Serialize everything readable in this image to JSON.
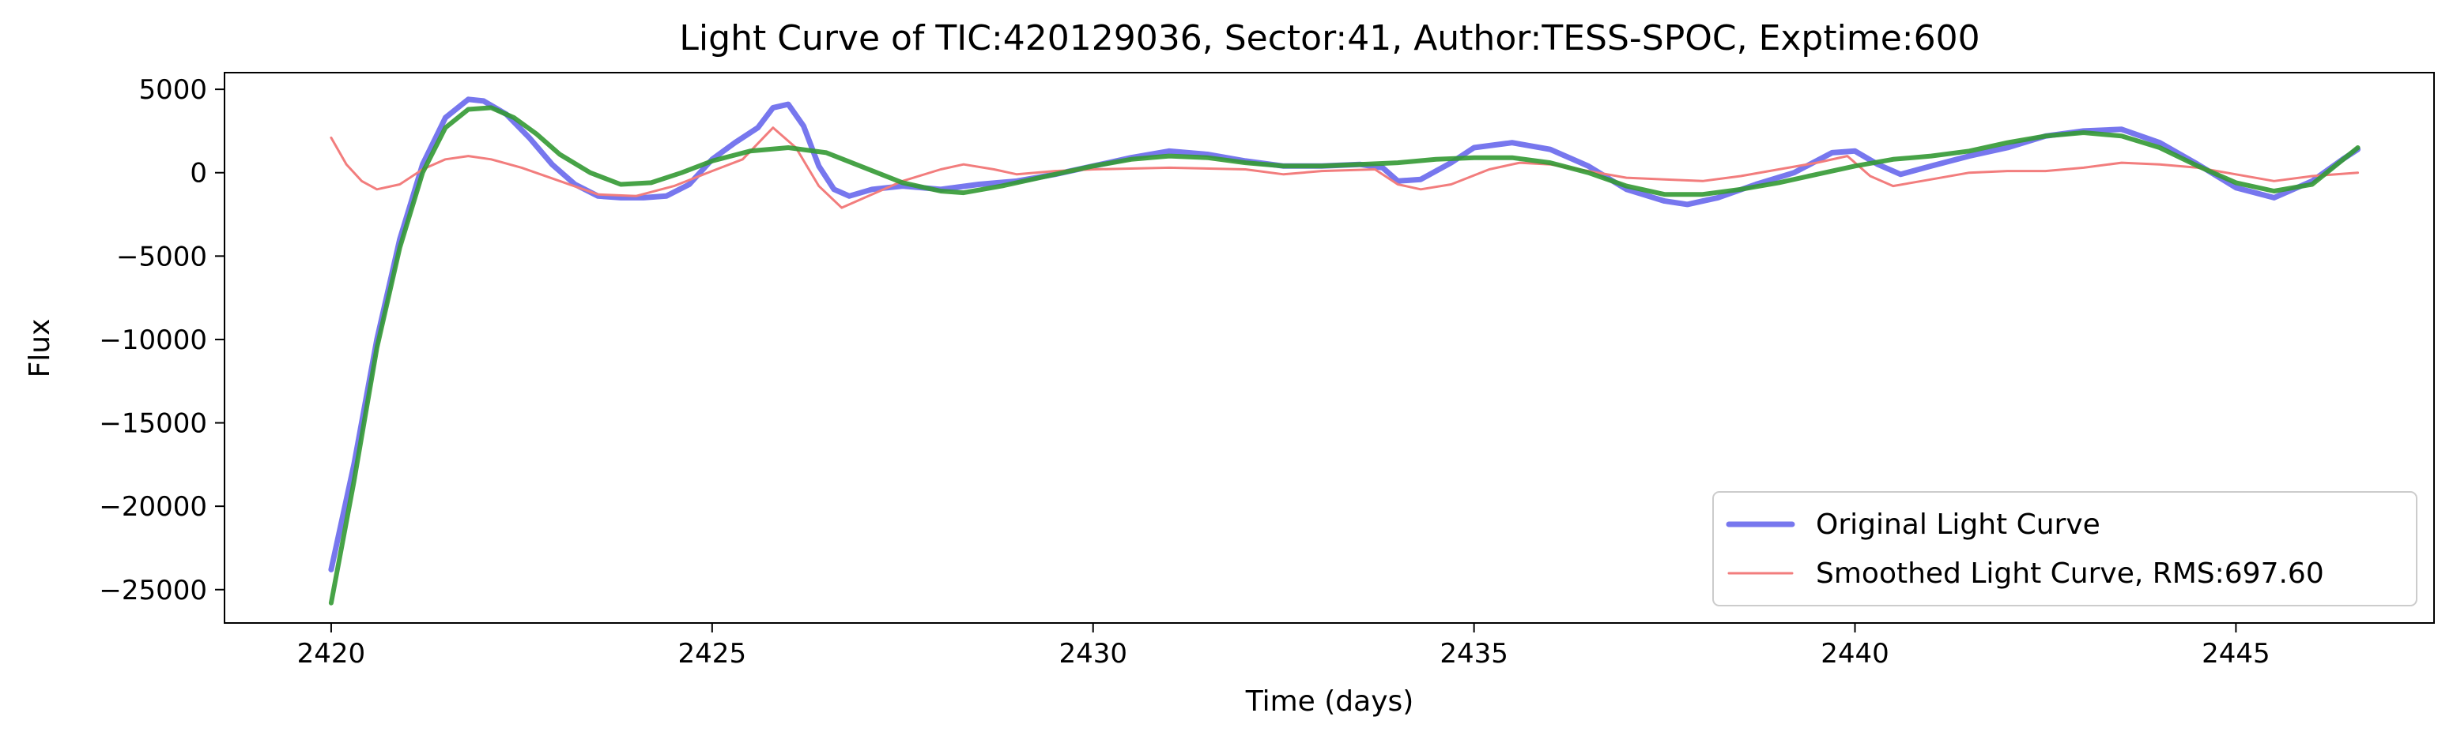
{
  "chart_data": {
    "type": "line",
    "title": "Light Curve of TIC:420129036, Sector:41, Author:TESS-SPOC, Exptime:600",
    "xlabel": "Time (days)",
    "ylabel": "Flux",
    "xlim": [
      2418.6,
      2447.6
    ],
    "ylim": [
      -27000,
      6000
    ],
    "xticks": [
      2420,
      2425,
      2430,
      2435,
      2440,
      2445
    ],
    "yticks": [
      5000,
      0,
      -5000,
      -10000,
      -15000,
      -20000,
      -25000
    ],
    "xtick_labels": [
      "2420",
      "2425",
      "2430",
      "2435",
      "2440",
      "2445"
    ],
    "ytick_labels": [
      "5000",
      "0",
      "−5000",
      "−10000",
      "−15000",
      "−20000",
      "−25000"
    ],
    "grid": false,
    "legend_position": "lower-right",
    "series": [
      {
        "name": "Original Light Curve",
        "color": "#7777ee",
        "points": [
          [
            2420.0,
            -23800
          ],
          [
            2420.3,
            -17500
          ],
          [
            2420.6,
            -10000
          ],
          [
            2420.9,
            -4000
          ],
          [
            2421.2,
            500
          ],
          [
            2421.5,
            3300
          ],
          [
            2421.8,
            4400
          ],
          [
            2422.0,
            4300
          ],
          [
            2422.3,
            3500
          ],
          [
            2422.6,
            2100
          ],
          [
            2422.9,
            500
          ],
          [
            2423.2,
            -700
          ],
          [
            2423.5,
            -1400
          ],
          [
            2423.8,
            -1500
          ],
          [
            2424.1,
            -1500
          ],
          [
            2424.4,
            -1400
          ],
          [
            2424.7,
            -700
          ],
          [
            2425.0,
            800
          ],
          [
            2425.3,
            1800
          ],
          [
            2425.6,
            2700
          ],
          [
            2425.8,
            3900
          ],
          [
            2426.0,
            4100
          ],
          [
            2426.2,
            2800
          ],
          [
            2426.4,
            400
          ],
          [
            2426.6,
            -1000
          ],
          [
            2426.8,
            -1400
          ],
          [
            2427.1,
            -1000
          ],
          [
            2427.5,
            -800
          ],
          [
            2428.0,
            -1000
          ],
          [
            2428.5,
            -700
          ],
          [
            2429.0,
            -500
          ],
          [
            2429.5,
            -100
          ],
          [
            2430.0,
            400
          ],
          [
            2430.5,
            900
          ],
          [
            2431.0,
            1300
          ],
          [
            2431.5,
            1100
          ],
          [
            2432.0,
            700
          ],
          [
            2432.5,
            400
          ],
          [
            2433.0,
            400
          ],
          [
            2433.5,
            500
          ],
          [
            2433.8,
            300
          ],
          [
            2434.0,
            -500
          ],
          [
            2434.3,
            -400
          ],
          [
            2434.7,
            600
          ],
          [
            2435.0,
            1500
          ],
          [
            2435.5,
            1800
          ],
          [
            2436.0,
            1400
          ],
          [
            2436.5,
            400
          ],
          [
            2437.0,
            -1000
          ],
          [
            2437.5,
            -1700
          ],
          [
            2437.8,
            -1900
          ],
          [
            2438.2,
            -1500
          ],
          [
            2438.7,
            -700
          ],
          [
            2439.2,
            0
          ],
          [
            2439.7,
            1200
          ],
          [
            2440.0,
            1300
          ],
          [
            2440.3,
            500
          ],
          [
            2440.6,
            -100
          ],
          [
            2441.0,
            400
          ],
          [
            2441.5,
            1000
          ],
          [
            2442.0,
            1500
          ],
          [
            2442.5,
            2200
          ],
          [
            2443.0,
            2500
          ],
          [
            2443.5,
            2600
          ],
          [
            2444.0,
            1800
          ],
          [
            2444.5,
            500
          ],
          [
            2445.0,
            -900
          ],
          [
            2445.5,
            -1500
          ],
          [
            2446.0,
            -500
          ],
          [
            2446.4,
            800
          ],
          [
            2446.6,
            1400
          ]
        ]
      },
      {
        "name": "Smoothed Light Curve, RMS:697.60",
        "color": "#f27d7d",
        "points": [
          [
            2420.0,
            2100
          ],
          [
            2420.2,
            500
          ],
          [
            2420.4,
            -500
          ],
          [
            2420.6,
            -1000
          ],
          [
            2420.9,
            -700
          ],
          [
            2421.2,
            200
          ],
          [
            2421.5,
            800
          ],
          [
            2421.8,
            1000
          ],
          [
            2422.1,
            800
          ],
          [
            2422.5,
            300
          ],
          [
            2423.0,
            -500
          ],
          [
            2423.5,
            -1300
          ],
          [
            2424.0,
            -1400
          ],
          [
            2424.5,
            -800
          ],
          [
            2425.0,
            100
          ],
          [
            2425.4,
            800
          ],
          [
            2425.8,
            2700
          ],
          [
            2426.1,
            1500
          ],
          [
            2426.4,
            -800
          ],
          [
            2426.7,
            -2100
          ],
          [
            2427.0,
            -1500
          ],
          [
            2427.5,
            -500
          ],
          [
            2428.0,
            200
          ],
          [
            2428.3,
            500
          ],
          [
            2428.7,
            200
          ],
          [
            2429.0,
            -100
          ],
          [
            2429.5,
            100
          ],
          [
            2430.0,
            200
          ],
          [
            2431.0,
            300
          ],
          [
            2432.0,
            200
          ],
          [
            2432.5,
            -100
          ],
          [
            2433.0,
            100
          ],
          [
            2433.7,
            200
          ],
          [
            2434.0,
            -700
          ],
          [
            2434.3,
            -1000
          ],
          [
            2434.7,
            -700
          ],
          [
            2435.2,
            200
          ],
          [
            2435.6,
            600
          ],
          [
            2436.0,
            500
          ],
          [
            2436.5,
            100
          ],
          [
            2437.0,
            -300
          ],
          [
            2437.5,
            -400
          ],
          [
            2438.0,
            -500
          ],
          [
            2438.5,
            -200
          ],
          [
            2439.0,
            200
          ],
          [
            2439.5,
            600
          ],
          [
            2439.9,
            1000
          ],
          [
            2440.2,
            -200
          ],
          [
            2440.5,
            -800
          ],
          [
            2441.0,
            -400
          ],
          [
            2441.5,
            0
          ],
          [
            2442.0,
            100
          ],
          [
            2442.5,
            100
          ],
          [
            2443.0,
            300
          ],
          [
            2443.5,
            600
          ],
          [
            2444.0,
            500
          ],
          [
            2444.5,
            300
          ],
          [
            2445.0,
            -100
          ],
          [
            2445.5,
            -500
          ],
          [
            2446.0,
            -200
          ],
          [
            2446.6,
            0
          ]
        ]
      },
      {
        "color": "#339933",
        "points": [
          [
            2420.0,
            -25800
          ],
          [
            2420.3,
            -18500
          ],
          [
            2420.6,
            -10500
          ],
          [
            2420.9,
            -4500
          ],
          [
            2421.2,
            0
          ],
          [
            2421.5,
            2700
          ],
          [
            2421.8,
            3800
          ],
          [
            2422.1,
            3900
          ],
          [
            2422.4,
            3300
          ],
          [
            2422.7,
            2300
          ],
          [
            2423.0,
            1100
          ],
          [
            2423.4,
            0
          ],
          [
            2423.8,
            -700
          ],
          [
            2424.2,
            -600
          ],
          [
            2424.6,
            0
          ],
          [
            2425.0,
            700
          ],
          [
            2425.5,
            1300
          ],
          [
            2426.0,
            1500
          ],
          [
            2426.5,
            1200
          ],
          [
            2427.0,
            300
          ],
          [
            2427.5,
            -600
          ],
          [
            2428.0,
            -1100
          ],
          [
            2428.3,
            -1200
          ],
          [
            2428.8,
            -800
          ],
          [
            2429.5,
            -100
          ],
          [
            2430.0,
            400
          ],
          [
            2430.5,
            800
          ],
          [
            2431.0,
            1000
          ],
          [
            2431.5,
            900
          ],
          [
            2432.0,
            600
          ],
          [
            2432.5,
            400
          ],
          [
            2433.0,
            400
          ],
          [
            2433.5,
            500
          ],
          [
            2434.0,
            600
          ],
          [
            2434.5,
            800
          ],
          [
            2435.0,
            900
          ],
          [
            2435.5,
            900
          ],
          [
            2436.0,
            600
          ],
          [
            2436.5,
            0
          ],
          [
            2437.0,
            -800
          ],
          [
            2437.5,
            -1300
          ],
          [
            2438.0,
            -1300
          ],
          [
            2438.5,
            -1000
          ],
          [
            2439.0,
            -600
          ],
          [
            2439.5,
            -100
          ],
          [
            2440.0,
            400
          ],
          [
            2440.5,
            800
          ],
          [
            2441.0,
            1000
          ],
          [
            2441.5,
            1300
          ],
          [
            2442.0,
            1800
          ],
          [
            2442.5,
            2200
          ],
          [
            2443.0,
            2400
          ],
          [
            2443.5,
            2200
          ],
          [
            2444.0,
            1500
          ],
          [
            2444.5,
            400
          ],
          [
            2445.0,
            -600
          ],
          [
            2445.5,
            -1100
          ],
          [
            2446.0,
            -700
          ],
          [
            2446.6,
            1500
          ]
        ]
      }
    ]
  }
}
